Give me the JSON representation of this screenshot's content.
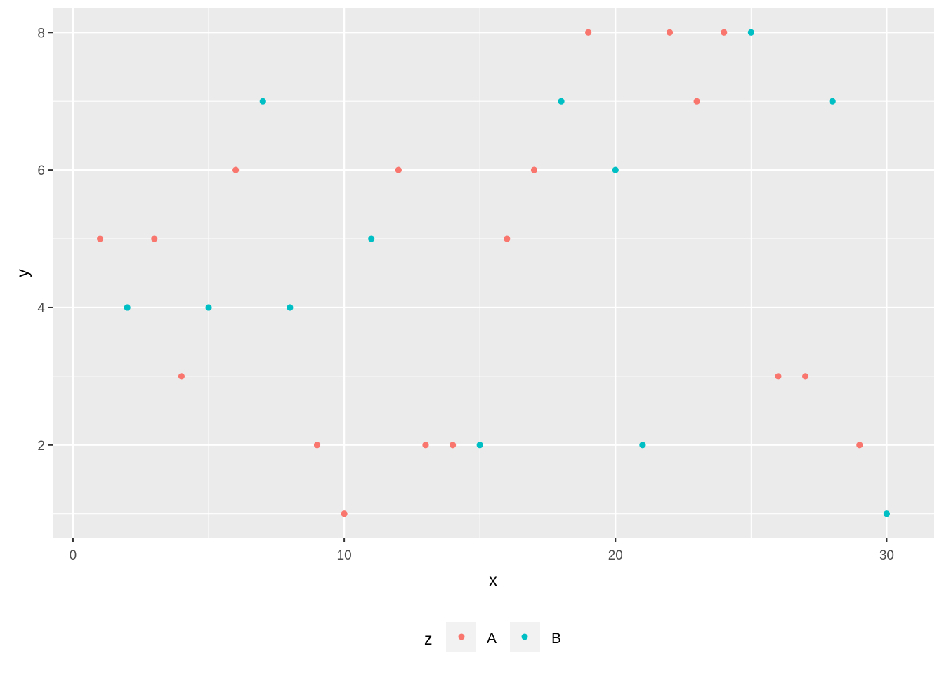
{
  "chart_data": {
    "type": "scatter",
    "title": "",
    "xlabel": "x",
    "ylabel": "y",
    "xlim": [
      -0.75,
      31.75
    ],
    "ylim": [
      0.65,
      8.35
    ],
    "xticks": [
      0,
      10,
      20,
      30
    ],
    "yticks": [
      2,
      4,
      6,
      8
    ],
    "grid": true,
    "legend": {
      "title": "z",
      "position": "bottom",
      "entries": [
        "A",
        "B"
      ]
    },
    "series": [
      {
        "name": "A",
        "color": "#F8766D",
        "points": [
          [
            1,
            5
          ],
          [
            3,
            5
          ],
          [
            4,
            3
          ],
          [
            6,
            6
          ],
          [
            9,
            2
          ],
          [
            10,
            1
          ],
          [
            12,
            6
          ],
          [
            13,
            2
          ],
          [
            14,
            2
          ],
          [
            16,
            5
          ],
          [
            17,
            6
          ],
          [
            19,
            8
          ],
          [
            22,
            8
          ],
          [
            23,
            7
          ],
          [
            24,
            8
          ],
          [
            26,
            3
          ],
          [
            27,
            3
          ],
          [
            29,
            2
          ]
        ]
      },
      {
        "name": "B",
        "color": "#00BFC4",
        "points": [
          [
            2,
            4
          ],
          [
            5,
            4
          ],
          [
            7,
            7
          ],
          [
            8,
            4
          ],
          [
            11,
            5
          ],
          [
            15,
            2
          ],
          [
            18,
            7
          ],
          [
            20,
            6
          ],
          [
            21,
            2
          ],
          [
            25,
            8
          ],
          [
            28,
            7
          ],
          [
            30,
            1
          ]
        ]
      }
    ]
  },
  "colors": {
    "panel_background": "#EBEBEB",
    "grid_major": "#FFFFFF",
    "key_background": "#F2F2F2"
  }
}
